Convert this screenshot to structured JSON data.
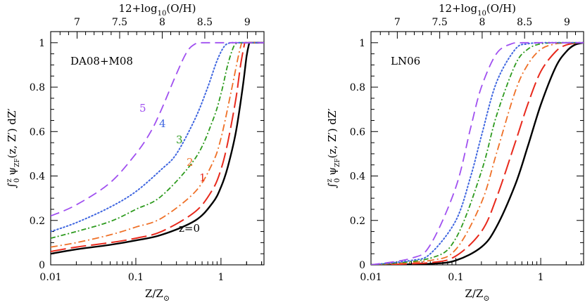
{
  "chart_data": [
    {
      "type": "line",
      "panel": "left",
      "title": "DA08+M08",
      "xlabel": "Z/Z⊙",
      "ylabel": "∫0z ψZF(z, Z′) dZ′",
      "top_xlabel": "12+log10(O/H)",
      "xscale": "log",
      "xlim": [
        0.01,
        3.2
      ],
      "ylim": [
        0,
        1.05
      ],
      "x_ticks": [
        "0.01",
        "0.1",
        "1"
      ],
      "y_ticks": [
        "0",
        "0.2",
        "0.4",
        "0.6",
        "0.8",
        "1"
      ],
      "top_ticks": [
        "7",
        "7.5",
        "8",
        "8.5",
        "9"
      ],
      "series": [
        {
          "name": "z=0",
          "label": "z=0",
          "color": "#000000",
          "style": "solid",
          "x": [
            0.01,
            0.02,
            0.05,
            0.1,
            0.2,
            0.5,
            0.8,
            1.0,
            1.2,
            1.5,
            1.8,
            2.0,
            2.15
          ],
          "y": [
            0.05,
            0.07,
            0.09,
            0.11,
            0.135,
            0.2,
            0.28,
            0.35,
            0.44,
            0.6,
            0.8,
            0.94,
            1.0
          ]
        },
        {
          "name": "z=1",
          "label": "1",
          "color": "#e8291c",
          "style": "longdash",
          "x": [
            0.01,
            0.02,
            0.05,
            0.1,
            0.2,
            0.5,
            0.8,
            1.0,
            1.2,
            1.5,
            1.7,
            1.9
          ],
          "y": [
            0.06,
            0.08,
            0.1,
            0.12,
            0.15,
            0.24,
            0.34,
            0.43,
            0.55,
            0.75,
            0.9,
            1.0
          ]
        },
        {
          "name": "z=2",
          "label": "2",
          "color": "#ef7027",
          "style": "dashdot",
          "x": [
            0.01,
            0.02,
            0.05,
            0.1,
            0.2,
            0.5,
            0.8,
            1.0,
            1.3,
            1.6,
            1.75
          ],
          "y": [
            0.08,
            0.1,
            0.135,
            0.17,
            0.21,
            0.33,
            0.46,
            0.57,
            0.77,
            0.94,
            1.0
          ]
        },
        {
          "name": "z=3",
          "label": "3",
          "color": "#2e9b1f",
          "style": "dotdash",
          "x": [
            0.01,
            0.02,
            0.05,
            0.1,
            0.2,
            0.5,
            0.8,
            1.0,
            1.2,
            1.4,
            1.55
          ],
          "y": [
            0.12,
            0.15,
            0.195,
            0.25,
            0.31,
            0.48,
            0.65,
            0.77,
            0.9,
            0.98,
            1.0
          ]
        },
        {
          "name": "z=4",
          "label": "4",
          "color": "#3f66e0",
          "style": "dotted",
          "x": [
            0.01,
            0.02,
            0.05,
            0.1,
            0.2,
            0.3,
            0.5,
            0.7,
            0.9,
            1.1,
            1.3
          ],
          "y": [
            0.15,
            0.19,
            0.26,
            0.33,
            0.43,
            0.5,
            0.66,
            0.8,
            0.92,
            0.985,
            1.0
          ]
        },
        {
          "name": "z=5",
          "label": "5",
          "color": "#a050f0",
          "style": "dashed",
          "x": [
            0.01,
            0.02,
            0.05,
            0.1,
            0.15,
            0.2,
            0.3,
            0.4,
            0.5,
            0.6
          ],
          "y": [
            0.22,
            0.27,
            0.37,
            0.5,
            0.6,
            0.7,
            0.86,
            0.96,
            0.995,
            1.0
          ]
        }
      ]
    },
    {
      "type": "line",
      "panel": "right",
      "title": "LN06",
      "xlabel": "Z/Z⊙",
      "ylabel": "∫0z ψZF(z, Z′) dZ′",
      "top_xlabel": "12+log10(O/H)",
      "xscale": "log",
      "xlim": [
        0.01,
        3.2
      ],
      "ylim": [
        0,
        1.05
      ],
      "x_ticks": [
        "0.01",
        "0.1",
        "1"
      ],
      "y_ticks": [
        "0",
        "0.2",
        "0.4",
        "0.6",
        "0.8",
        "1"
      ],
      "top_ticks": [
        "7",
        "7.5",
        "8",
        "8.5",
        "9"
      ],
      "series": [
        {
          "name": "z=0",
          "label": "z=0",
          "color": "#000000",
          "style": "solid",
          "x": [
            0.01,
            0.05,
            0.1,
            0.2,
            0.3,
            0.5,
            0.7,
            1.0,
            1.5,
            2.0,
            2.5,
            3.2
          ],
          "y": [
            0.0,
            0.005,
            0.02,
            0.08,
            0.17,
            0.36,
            0.53,
            0.72,
            0.89,
            0.96,
            0.99,
            1.0
          ]
        },
        {
          "name": "z=1",
          "label": "1",
          "color": "#e8291c",
          "style": "longdash",
          "x": [
            0.01,
            0.05,
            0.1,
            0.2,
            0.3,
            0.5,
            0.7,
            1.0,
            1.5,
            2.0,
            2.8
          ],
          "y": [
            0.0,
            0.01,
            0.04,
            0.15,
            0.3,
            0.55,
            0.72,
            0.87,
            0.96,
            0.99,
            1.0
          ]
        },
        {
          "name": "z=2",
          "label": "2",
          "color": "#ef7027",
          "style": "dashdot",
          "x": [
            0.01,
            0.05,
            0.1,
            0.2,
            0.3,
            0.5,
            0.7,
            1.0,
            1.5,
            2.3
          ],
          "y": [
            0.0,
            0.02,
            0.07,
            0.28,
            0.5,
            0.78,
            0.9,
            0.97,
            0.995,
            1.0
          ]
        },
        {
          "name": "z=3",
          "label": "3",
          "color": "#2e9b1f",
          "style": "dotdash",
          "x": [
            0.01,
            0.05,
            0.1,
            0.2,
            0.3,
            0.5,
            0.7,
            1.0,
            1.6
          ],
          "y": [
            0.0,
            0.03,
            0.12,
            0.42,
            0.67,
            0.9,
            0.97,
            0.995,
            1.0
          ]
        },
        {
          "name": "z=4",
          "label": "4",
          "color": "#3f66e0",
          "style": "dotted",
          "x": [
            0.01,
            0.03,
            0.05,
            0.1,
            0.15,
            0.2,
            0.3,
            0.5,
            0.7,
            1.1
          ],
          "y": [
            0.0,
            0.02,
            0.05,
            0.2,
            0.4,
            0.58,
            0.82,
            0.97,
            0.995,
            1.0
          ]
        },
        {
          "name": "z=5",
          "label": "5",
          "color": "#a050f0",
          "style": "dashed",
          "x": [
            0.01,
            0.03,
            0.05,
            0.1,
            0.15,
            0.2,
            0.3,
            0.45,
            0.6
          ],
          "y": [
            0.0,
            0.03,
            0.09,
            0.35,
            0.62,
            0.8,
            0.95,
            0.995,
            1.0
          ]
        }
      ]
    }
  ]
}
